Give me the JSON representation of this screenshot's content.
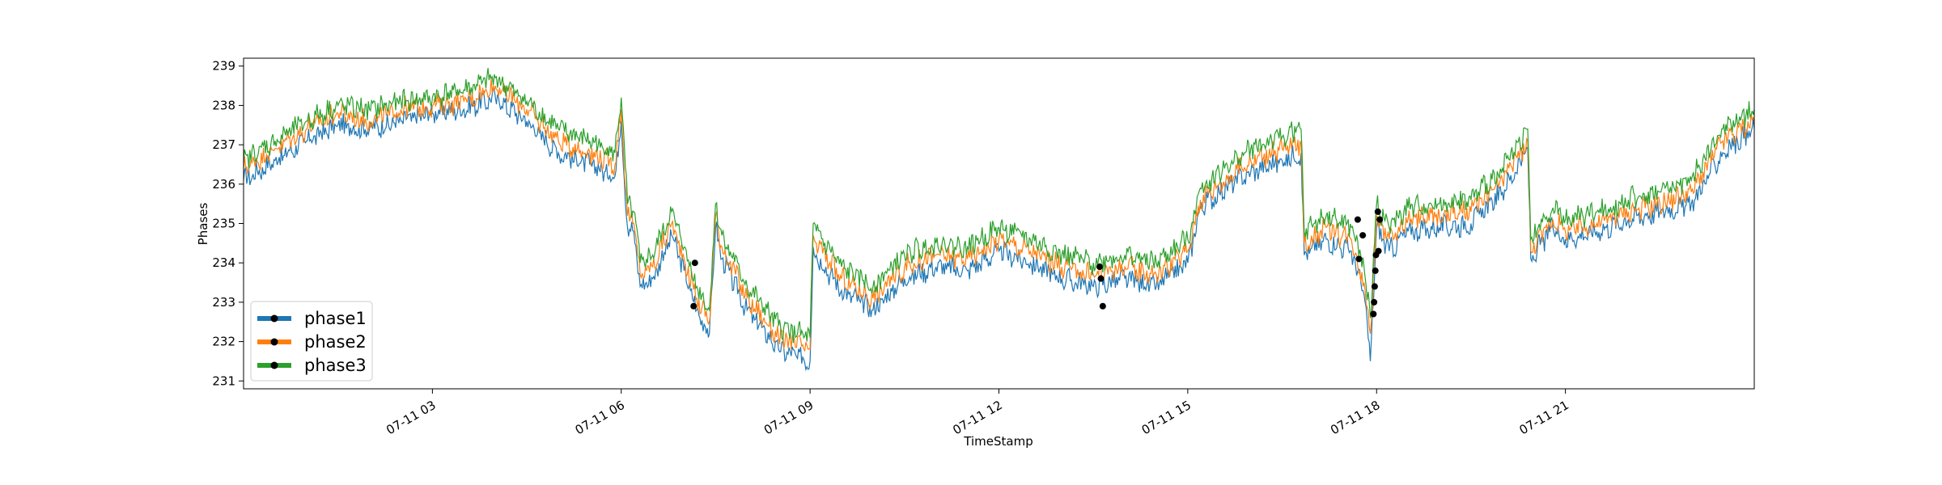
{
  "chart_data": {
    "type": "line",
    "title": "",
    "xlabel": "TimeStamp",
    "ylabel": "Phases",
    "x_range_hours": [
      0.0,
      24.0
    ],
    "ylim": [
      230.8,
      239.2
    ],
    "y_ticks": [
      231,
      232,
      233,
      234,
      235,
      236,
      237,
      238,
      239
    ],
    "x_ticks": [
      {
        "hour": 3,
        "label": "07-11 03"
      },
      {
        "hour": 6,
        "label": "07-11 06"
      },
      {
        "hour": 9,
        "label": "07-11 09"
      },
      {
        "hour": 12,
        "label": "07-11 12"
      },
      {
        "hour": 15,
        "label": "07-11 15"
      },
      {
        "hour": 18,
        "label": "07-11 18"
      },
      {
        "hour": 21,
        "label": "07-11 21"
      }
    ],
    "grid": false,
    "legend": {
      "placement": "lower-left",
      "entries": [
        "phase1",
        "phase2",
        "phase3"
      ]
    },
    "series": [
      {
        "name": "phase1",
        "color": "#1f77b4",
        "x": [
          0.0,
          0.5,
          1.0,
          1.5,
          2.0,
          2.5,
          3.0,
          3.5,
          4.0,
          4.5,
          5.0,
          5.5,
          5.9,
          6.0,
          6.1,
          6.2,
          6.3,
          6.4,
          6.5,
          6.8,
          7.0,
          7.2,
          7.4,
          7.5,
          7.6,
          8.0,
          8.5,
          9.0,
          9.05,
          9.1,
          9.5,
          10.0,
          10.5,
          11.0,
          11.5,
          12.0,
          12.5,
          13.0,
          13.5,
          14.0,
          14.5,
          15.0,
          15.2,
          15.5,
          16.0,
          16.5,
          16.8,
          16.85,
          17.2,
          17.6,
          17.8,
          17.9,
          18.0,
          18.2,
          18.5,
          19.0,
          19.5,
          20.0,
          20.4,
          20.45,
          20.8,
          21.0,
          21.5,
          22.0,
          22.5,
          23.0,
          23.5,
          24.0
        ],
        "values": [
          236.1,
          236.6,
          237.1,
          237.5,
          237.4,
          237.6,
          237.8,
          237.9,
          238.2,
          237.6,
          236.8,
          236.5,
          236.2,
          237.6,
          234.9,
          234.8,
          233.4,
          233.5,
          233.6,
          234.7,
          233.8,
          232.8,
          232.2,
          234.9,
          234.1,
          232.8,
          231.8,
          231.5,
          234.4,
          234.2,
          233.3,
          232.8,
          233.6,
          233.9,
          233.8,
          234.3,
          234.0,
          233.6,
          233.4,
          233.6,
          233.4,
          234.0,
          235.4,
          235.8,
          236.3,
          236.6,
          236.8,
          234.2,
          234.6,
          234.3,
          233.2,
          231.5,
          234.9,
          234.3,
          234.8,
          234.9,
          235.0,
          235.8,
          236.9,
          234.1,
          234.9,
          234.6,
          234.8,
          235.1,
          235.3,
          235.5,
          236.8,
          237.4
        ]
      },
      {
        "name": "phase2",
        "color": "#ff7f0e",
        "x": [
          0.0,
          0.5,
          1.0,
          1.5,
          2.0,
          2.5,
          3.0,
          3.5,
          4.0,
          4.5,
          5.0,
          5.5,
          5.9,
          6.0,
          6.1,
          6.2,
          6.3,
          6.4,
          6.5,
          6.8,
          7.0,
          7.2,
          7.4,
          7.5,
          7.6,
          8.0,
          8.5,
          9.0,
          9.05,
          9.1,
          9.5,
          10.0,
          10.5,
          11.0,
          11.5,
          12.0,
          12.5,
          13.0,
          13.5,
          14.0,
          14.5,
          15.0,
          15.2,
          15.5,
          16.0,
          16.5,
          16.8,
          16.85,
          17.2,
          17.6,
          17.8,
          17.9,
          18.0,
          18.2,
          18.5,
          19.0,
          19.5,
          20.0,
          20.4,
          20.45,
          20.8,
          21.0,
          21.5,
          22.0,
          22.5,
          23.0,
          23.5,
          24.0
        ],
        "values": [
          236.4,
          236.9,
          237.4,
          237.8,
          237.6,
          237.9,
          238.0,
          238.1,
          238.5,
          237.9,
          237.1,
          236.8,
          236.5,
          237.9,
          235.2,
          235.0,
          233.7,
          233.8,
          233.9,
          235.0,
          234.1,
          233.1,
          232.5,
          235.2,
          234.4,
          233.1,
          232.1,
          231.8,
          234.7,
          234.5,
          233.6,
          233.1,
          233.9,
          234.2,
          234.1,
          234.6,
          234.3,
          233.9,
          233.7,
          233.9,
          233.7,
          234.3,
          235.6,
          236.0,
          236.6,
          236.9,
          237.0,
          234.5,
          234.9,
          234.6,
          233.5,
          232.2,
          235.2,
          234.6,
          235.1,
          235.2,
          235.3,
          236.1,
          237.1,
          234.3,
          235.1,
          234.8,
          235.0,
          235.3,
          235.5,
          235.8,
          237.1,
          237.6
        ]
      },
      {
        "name": "phase3",
        "color": "#2ca02c",
        "x": [
          0.0,
          0.5,
          1.0,
          1.5,
          2.0,
          2.5,
          3.0,
          3.5,
          4.0,
          4.5,
          5.0,
          5.5,
          5.9,
          6.0,
          6.1,
          6.2,
          6.3,
          6.4,
          6.5,
          6.8,
          7.0,
          7.2,
          7.4,
          7.5,
          7.6,
          8.0,
          8.5,
          9.0,
          9.05,
          9.1,
          9.5,
          10.0,
          10.5,
          11.0,
          11.5,
          12.0,
          12.5,
          13.0,
          13.5,
          14.0,
          14.5,
          15.0,
          15.2,
          15.5,
          16.0,
          16.5,
          16.8,
          16.85,
          17.2,
          17.6,
          17.8,
          17.9,
          18.0,
          18.2,
          18.5,
          19.0,
          19.5,
          20.0,
          20.4,
          20.45,
          20.8,
          21.0,
          21.5,
          22.0,
          22.5,
          23.0,
          23.5,
          24.0
        ],
        "values": [
          236.6,
          237.1,
          237.6,
          238.0,
          237.9,
          238.1,
          238.2,
          238.4,
          238.7,
          238.1,
          237.4,
          237.1,
          236.8,
          238.2,
          235.5,
          235.3,
          234.0,
          234.1,
          234.2,
          235.3,
          234.4,
          233.4,
          232.8,
          235.5,
          234.7,
          233.4,
          232.4,
          232.1,
          235.0,
          234.8,
          233.9,
          233.4,
          234.2,
          234.5,
          234.4,
          234.9,
          234.6,
          234.2,
          234.0,
          234.2,
          234.0,
          234.6,
          235.9,
          236.3,
          236.9,
          237.2,
          237.4,
          234.8,
          235.2,
          234.9,
          233.9,
          232.6,
          235.5,
          234.9,
          235.4,
          235.5,
          235.6,
          236.4,
          237.4,
          234.6,
          235.4,
          235.1,
          235.3,
          235.6,
          235.8,
          236.1,
          237.4,
          237.9
        ]
      }
    ],
    "markers": [
      {
        "x": 7.15,
        "y": 232.9
      },
      {
        "x": 7.17,
        "y": 234.0
      },
      {
        "x": 13.6,
        "y": 233.9
      },
      {
        "x": 13.62,
        "y": 233.6
      },
      {
        "x": 13.65,
        "y": 232.9
      },
      {
        "x": 17.7,
        "y": 235.1
      },
      {
        "x": 17.72,
        "y": 234.1
      },
      {
        "x": 17.78,
        "y": 234.7
      },
      {
        "x": 17.95,
        "y": 232.7
      },
      {
        "x": 17.96,
        "y": 233.0
      },
      {
        "x": 17.97,
        "y": 233.4
      },
      {
        "x": 17.98,
        "y": 233.8
      },
      {
        "x": 17.99,
        "y": 234.2
      },
      {
        "x": 18.02,
        "y": 235.3
      },
      {
        "x": 18.03,
        "y": 234.3
      },
      {
        "x": 18.05,
        "y": 235.1
      }
    ]
  }
}
